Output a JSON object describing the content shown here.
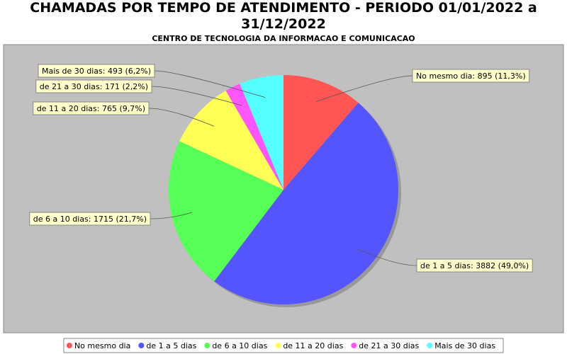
{
  "chart_data": {
    "type": "pie",
    "title": "CHAMADAS POR TEMPO DE ATENDIMENTO - PERIODO 01/01/2022 a 31/12/2022",
    "subtitle": "CENTRO DE TECNOLOGIA DA INFORMACAO E COMUNICACAO",
    "categories": [
      "No mesmo dia",
      "de 1 a 5 dias",
      "de 6 a 10 dias",
      "de 11 a 20 dias",
      "de 21 a 30 dias",
      "Mais de 30 dias"
    ],
    "values": [
      895,
      3882,
      1715,
      765,
      171,
      493
    ],
    "value_labels": [
      "No mesmo dia: 895 (11,3%)",
      "de 1 a 5 dias: 3882 (49,0%)",
      "de 6 a 10 dias: 1715 (21,7%)",
      "de 11 a 20 dias: 765 (9,7%)",
      "de 21 a 30 dias: 171 (2,2%)",
      "Mais de 30 dias: 493 (6,2%)"
    ],
    "colors": [
      "#ff5555",
      "#5555ff",
      "#55ff55",
      "#ffff55",
      "#ff55ff",
      "#55ffff"
    ],
    "legend": "bottom"
  }
}
